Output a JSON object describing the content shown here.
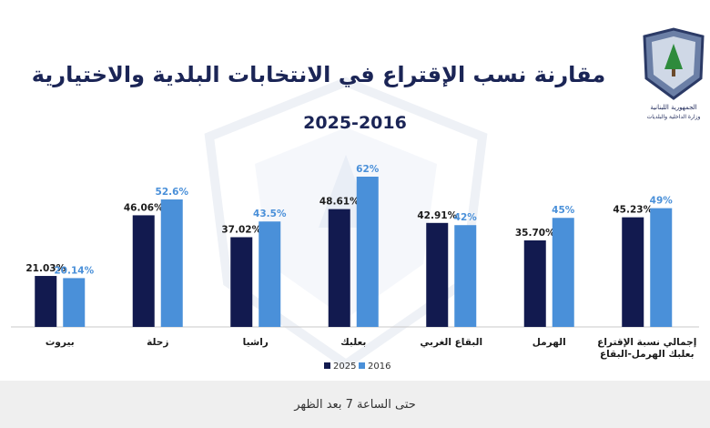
{
  "header": {
    "title": "مقارنة نسب الإقتراع في الانتخابات البلدية والاختيارية",
    "subtitle": "2025-2016"
  },
  "logo": {
    "line1": "الجمهورية اللبنانية",
    "line2": "وزارة الداخلية والبلديات"
  },
  "footer": {
    "text": "حتى الساعة 7 بعد الظهر"
  },
  "colors": {
    "series_2025": "#121a4f",
    "series_2016": "#4a90d9",
    "title": "#1b2556"
  },
  "chart_data": {
    "type": "bar",
    "title": "مقارنة نسب الإقتراع في الانتخابات البلدية والاختيارية",
    "subtitle": "2025-2016",
    "categories": [
      "بيروت",
      "زحلة",
      "راشيا",
      "بعلبك",
      "البقاع الغربي",
      "الهرمل",
      "إجمالي نسبة الإقتراع\nبعلبك الهرمل-البقاع"
    ],
    "series": [
      {
        "name": "2025",
        "values": [
          21.03,
          46.06,
          37.02,
          48.61,
          42.91,
          35.7,
          45.23
        ],
        "labels": [
          "21.03%",
          "46.06%",
          "37.02%",
          "48.61%",
          "42.91%",
          "35.70%",
          "45.23%"
        ],
        "color": "#121a4f"
      },
      {
        "name": "2016",
        "values": [
          20.14,
          52.6,
          43.5,
          62,
          42,
          45,
          49
        ],
        "labels": [
          "20.14%",
          "52.6%",
          "43.5%",
          "62%",
          "42%",
          "45%",
          "49%"
        ],
        "color": "#4a90d9"
      }
    ],
    "ylim": [
      0,
      70
    ],
    "grid": false,
    "legend_position": "bottom-center"
  }
}
